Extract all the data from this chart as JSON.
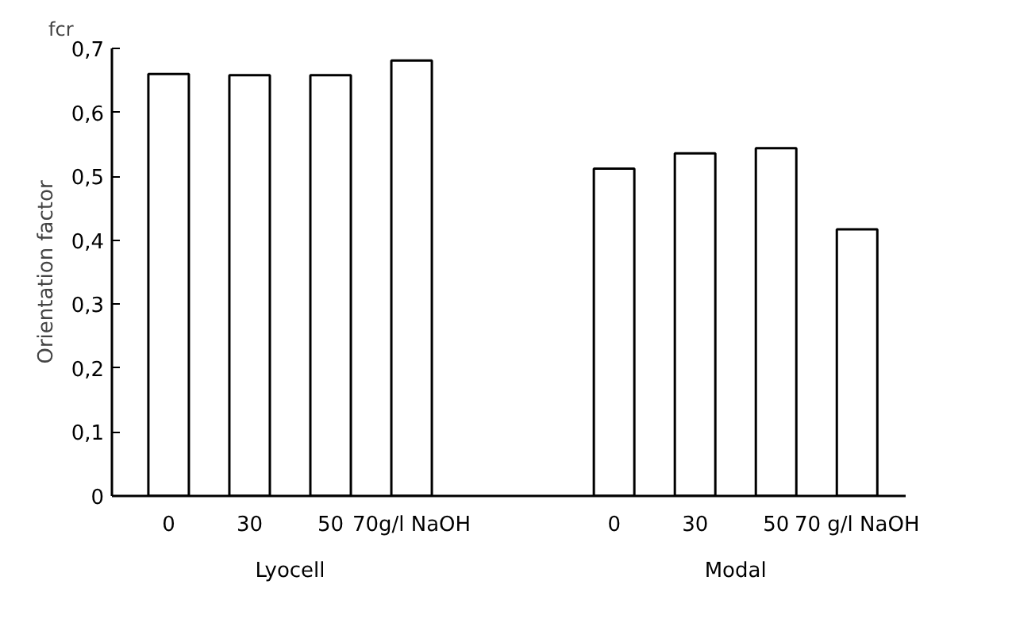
{
  "chart_data": {
    "type": "bar",
    "title": "fcr",
    "ylabel": "Orientation factor",
    "categories": [
      "0",
      "30",
      "50",
      "70g/l NaOH",
      "0",
      "30",
      "50",
      "70 g/l NaOH"
    ],
    "values": [
      0.66,
      0.658,
      0.658,
      0.681,
      0.512,
      0.536,
      0.544,
      0.417
    ],
    "color": "#ffffff",
    "ylim": [
      0,
      0.7
    ],
    "yticks": [
      0,
      {
        "value": 0.1,
        "label": "0,1"
      },
      {
        "value": 0.2,
        "label": "0,2"
      },
      {
        "value": 0.3,
        "label": "0,3"
      },
      {
        "value": 0.4,
        "label": "0,4"
      },
      {
        "value": 0.5,
        "label": "0,5"
      },
      {
        "value": 0.6,
        "label": "0,6"
      },
      {
        "value": 0.7,
        "label": "0,7"
      }
    ],
    "annotations": [
      "Lyocell",
      "Modal"
    ],
    "grid": false
  }
}
